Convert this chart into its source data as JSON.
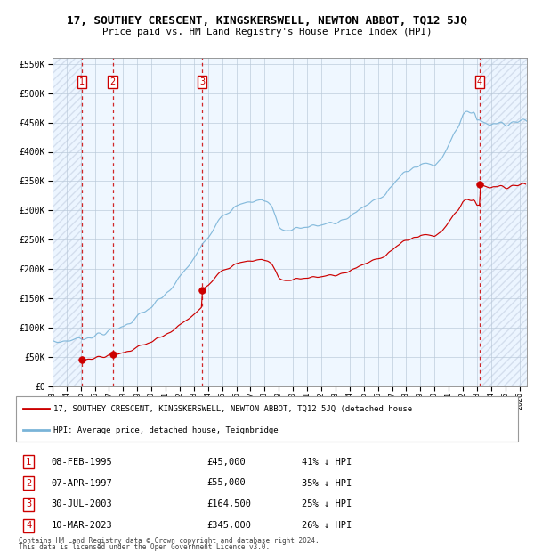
{
  "title": "17, SOUTHEY CRESCENT, KINGSKERSWELL, NEWTON ABBOT, TQ12 5JQ",
  "subtitle": "Price paid vs. HM Land Registry's House Price Index (HPI)",
  "legend_line1": "17, SOUTHEY CRESCENT, KINGSKERSWELL, NEWTON ABBOT, TQ12 5JQ (detached house",
  "legend_line2": "HPI: Average price, detached house, Teignbridge",
  "footer1": "Contains HM Land Registry data © Crown copyright and database right 2024.",
  "footer2": "This data is licensed under the Open Government Licence v3.0.",
  "sales": [
    {
      "num": 1,
      "date_label": "08-FEB-1995",
      "price_label": "£45,000",
      "hpi_label": "41% ↓ HPI",
      "year": 1995.1,
      "price": 45000
    },
    {
      "num": 2,
      "date_label": "07-APR-1997",
      "price_label": "£55,000",
      "hpi_label": "35% ↓ HPI",
      "year": 1997.27,
      "price": 55000
    },
    {
      "num": 3,
      "date_label": "30-JUL-2003",
      "price_label": "£164,500",
      "hpi_label": "25% ↓ HPI",
      "year": 2003.58,
      "price": 164500
    },
    {
      "num": 4,
      "date_label": "10-MAR-2023",
      "price_label": "£345,000",
      "hpi_label": "26% ↓ HPI",
      "year": 2023.19,
      "price": 345000
    }
  ],
  "hpi_color": "#7ab4d8",
  "price_color": "#cc0000",
  "shade_color": "#ddeeff",
  "hatch_color": "#c0cce0",
  "grid_color": "#b8c8d8",
  "ylim": [
    0,
    560000
  ],
  "xlim_start": 1993.0,
  "xlim_end": 2026.5,
  "yticks": [
    0,
    50000,
    100000,
    150000,
    200000,
    250000,
    300000,
    350000,
    400000,
    450000,
    500000,
    550000
  ],
  "ytick_labels": [
    "£0",
    "£50K",
    "£100K",
    "£150K",
    "£200K",
    "£250K",
    "£300K",
    "£350K",
    "£400K",
    "£450K",
    "£500K",
    "£550K"
  ],
  "xticks": [
    1993,
    1994,
    1995,
    1996,
    1997,
    1998,
    1999,
    2000,
    2001,
    2002,
    2003,
    2004,
    2005,
    2006,
    2007,
    2008,
    2009,
    2010,
    2011,
    2012,
    2013,
    2014,
    2015,
    2016,
    2017,
    2018,
    2019,
    2020,
    2021,
    2022,
    2023,
    2024,
    2025,
    2026
  ]
}
